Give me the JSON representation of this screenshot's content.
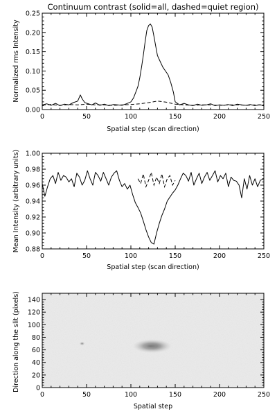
{
  "chart_data": [
    {
      "type": "line",
      "title": "Continuum contrast (solid=all, dashed=quiet region)",
      "xlabel": "Spatial step (scan direction)",
      "ylabel": "Normalized rms Intensity",
      "xlim": [
        0,
        250
      ],
      "ylim": [
        0,
        0.25
      ],
      "xticks": [
        0,
        50,
        100,
        150,
        200,
        250
      ],
      "xtick_labels": [
        "0",
        "50",
        "100",
        "150",
        "200",
        "250"
      ],
      "yticks": [
        0,
        0.05,
        0.1,
        0.15,
        0.2,
        0.25
      ],
      "ytick_labels": [
        "0.00",
        "0.05",
        "0.10",
        "0.15",
        "0.20",
        "0.25"
      ],
      "grid": false,
      "series": [
        {
          "style": "solid",
          "x": [
            0,
            5,
            10,
            15,
            20,
            25,
            30,
            35,
            40,
            43,
            45,
            48,
            52,
            56,
            60,
            65,
            70,
            75,
            80,
            85,
            90,
            95,
            100,
            103,
            106,
            108,
            110,
            112,
            114,
            116,
            118,
            120,
            122,
            124,
            126,
            128,
            130,
            133,
            136,
            139,
            142,
            145,
            148,
            150,
            155,
            160,
            165,
            170,
            175,
            180,
            185,
            190,
            195,
            200,
            205,
            210,
            215,
            220,
            225,
            230,
            235,
            240,
            245,
            250
          ],
          "values": [
            0.012,
            0.015,
            0.011,
            0.016,
            0.01,
            0.014,
            0.012,
            0.018,
            0.022,
            0.038,
            0.028,
            0.018,
            0.015,
            0.012,
            0.017,
            0.011,
            0.014,
            0.01,
            0.013,
            0.012,
            0.011,
            0.015,
            0.02,
            0.03,
            0.048,
            0.06,
            0.082,
            0.11,
            0.14,
            0.175,
            0.205,
            0.218,
            0.222,
            0.214,
            0.19,
            0.165,
            0.14,
            0.125,
            0.11,
            0.1,
            0.09,
            0.07,
            0.045,
            0.02,
            0.012,
            0.016,
            0.012,
            0.01,
            0.014,
            0.011,
            0.012,
            0.015,
            0.01,
            0.012,
            0.011,
            0.013,
            0.01,
            0.014,
            0.012,
            0.011,
            0.013,
            0.01,
            0.012,
            0.011
          ]
        },
        {
          "style": "dashed",
          "x": [
            0,
            10,
            20,
            30,
            40,
            50,
            60,
            70,
            80,
            90,
            100,
            110,
            120,
            130,
            140,
            150,
            160,
            170,
            180,
            190,
            200,
            210,
            220,
            230,
            240,
            250
          ],
          "values": [
            0.012,
            0.013,
            0.011,
            0.013,
            0.012,
            0.014,
            0.012,
            0.012,
            0.011,
            0.012,
            0.013,
            0.015,
            0.018,
            0.022,
            0.019,
            0.014,
            0.012,
            0.011,
            0.012,
            0.012,
            0.011,
            0.012,
            0.012,
            0.011,
            0.012,
            0.012
          ]
        }
      ]
    },
    {
      "type": "line",
      "title": "",
      "xlabel": "Spatial step (scan direction)",
      "ylabel": "Mean Intensity (arbitrary units)",
      "xlim": [
        0,
        250
      ],
      "ylim": [
        0.88,
        1.0
      ],
      "xticks": [
        0,
        50,
        100,
        150,
        200,
        250
      ],
      "xtick_labels": [
        "0",
        "50",
        "100",
        "150",
        "200",
        "250"
      ],
      "yticks": [
        0.88,
        0.9,
        0.92,
        0.94,
        0.96,
        0.98,
        1.0
      ],
      "ytick_labels": [
        "0.88",
        "0.90",
        "0.92",
        "0.94",
        "0.96",
        "0.98",
        "1.00"
      ],
      "grid": false,
      "series": [
        {
          "style": "solid",
          "x": [
            0,
            3,
            6,
            9,
            12,
            15,
            18,
            21,
            24,
            27,
            30,
            33,
            36,
            39,
            42,
            45,
            48,
            51,
            54,
            57,
            60,
            63,
            66,
            69,
            72,
            75,
            78,
            81,
            84,
            87,
            90,
            93,
            96,
            99,
            102,
            105,
            108,
            111,
            114,
            117,
            120,
            123,
            126,
            129,
            132,
            135,
            138,
            141,
            144,
            147,
            150,
            153,
            156,
            159,
            162,
            165,
            168,
            171,
            174,
            177,
            180,
            183,
            186,
            189,
            192,
            195,
            198,
            201,
            204,
            207,
            210,
            213,
            216,
            219,
            222,
            225,
            228,
            231,
            234,
            237,
            240,
            243,
            246,
            250
          ],
          "values": [
            0.962,
            0.946,
            0.958,
            0.968,
            0.972,
            0.962,
            0.976,
            0.966,
            0.972,
            0.97,
            0.964,
            0.968,
            0.958,
            0.975,
            0.97,
            0.96,
            0.966,
            0.978,
            0.968,
            0.96,
            0.976,
            0.972,
            0.965,
            0.976,
            0.968,
            0.96,
            0.97,
            0.975,
            0.978,
            0.966,
            0.958,
            0.962,
            0.955,
            0.96,
            0.948,
            0.938,
            0.932,
            0.925,
            0.915,
            0.904,
            0.895,
            0.888,
            0.886,
            0.9,
            0.912,
            0.922,
            0.93,
            0.94,
            0.945,
            0.95,
            0.954,
            0.96,
            0.968,
            0.975,
            0.972,
            0.965,
            0.976,
            0.96,
            0.968,
            0.975,
            0.962,
            0.97,
            0.976,
            0.966,
            0.972,
            0.978,
            0.964,
            0.972,
            0.968,
            0.975,
            0.958,
            0.97,
            0.966,
            0.965,
            0.96,
            0.944,
            0.968,
            0.955,
            0.972,
            0.96,
            0.968,
            0.958,
            0.966,
            0.968
          ]
        },
        {
          "style": "dashed",
          "x": [
            108,
            111,
            114,
            117,
            120,
            123,
            126,
            129,
            132,
            135,
            138,
            141,
            144,
            147,
            150
          ],
          "values": [
            0.968,
            0.962,
            0.974,
            0.958,
            0.966,
            0.976,
            0.96,
            0.97,
            0.962,
            0.974,
            0.958,
            0.968,
            0.972,
            0.96,
            0.966
          ]
        }
      ]
    },
    {
      "type": "heatmap",
      "title": "",
      "xlabel": "Spatial step",
      "ylabel": "Direction along the slit (pixels)",
      "xlim": [
        0,
        250
      ],
      "ylim": [
        0,
        150
      ],
      "xticks": [
        0,
        50,
        100,
        150,
        200,
        250
      ],
      "xtick_labels": [
        "0",
        "50",
        "100",
        "150",
        "200",
        "250"
      ],
      "yticks": [
        0,
        20,
        40,
        60,
        80,
        100,
        120,
        140
      ],
      "ytick_labels": [
        "0",
        "20",
        "40",
        "60",
        "80",
        "100",
        "120",
        "140"
      ],
      "colormap": "inverted grayscale",
      "features": [
        {
          "kind": "dark spot (umbra)",
          "x": 122,
          "y": 66,
          "rx": 8,
          "ry": 4
        },
        {
          "kind": "penumbra",
          "x": 124,
          "y": 66,
          "rx": 22,
          "ry": 11
        },
        {
          "kind": "small dark dot",
          "x": 45,
          "y": 70,
          "rx": 3,
          "ry": 3
        }
      ]
    }
  ]
}
